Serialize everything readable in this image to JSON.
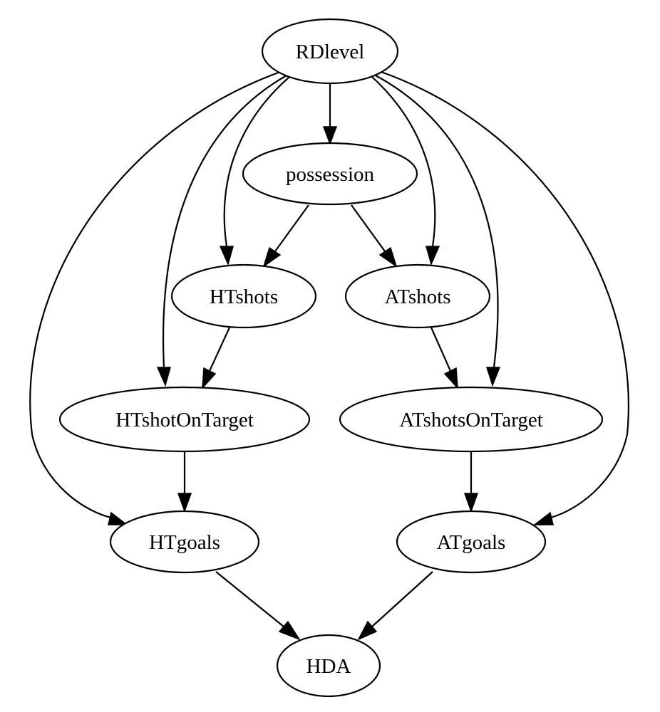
{
  "nodes": {
    "rdlevel": "RDlevel",
    "possession": "possession",
    "htshots": "HTshots",
    "atshots": "ATshots",
    "htshotontarget": "HTshotOnTarget",
    "atshotsontarget": "ATshotsOnTarget",
    "htgoals": "HTgoals",
    "atgoals": "ATgoals",
    "hda": "HDA"
  },
  "edges": [
    {
      "from": "RDlevel",
      "to": "possession"
    },
    {
      "from": "RDlevel",
      "to": "HTshots"
    },
    {
      "from": "RDlevel",
      "to": "ATshots"
    },
    {
      "from": "RDlevel",
      "to": "HTshotOnTarget"
    },
    {
      "from": "RDlevel",
      "to": "ATshotsOnTarget"
    },
    {
      "from": "RDlevel",
      "to": "HTgoals"
    },
    {
      "from": "RDlevel",
      "to": "ATgoals"
    },
    {
      "from": "possession",
      "to": "HTshots"
    },
    {
      "from": "possession",
      "to": "ATshots"
    },
    {
      "from": "HTshots",
      "to": "HTshotOnTarget"
    },
    {
      "from": "ATshots",
      "to": "ATshotsOnTarget"
    },
    {
      "from": "HTshotOnTarget",
      "to": "HTgoals"
    },
    {
      "from": "ATshotsOnTarget",
      "to": "ATgoals"
    },
    {
      "from": "HTgoals",
      "to": "HDA"
    },
    {
      "from": "ATgoals",
      "to": "HDA"
    }
  ]
}
